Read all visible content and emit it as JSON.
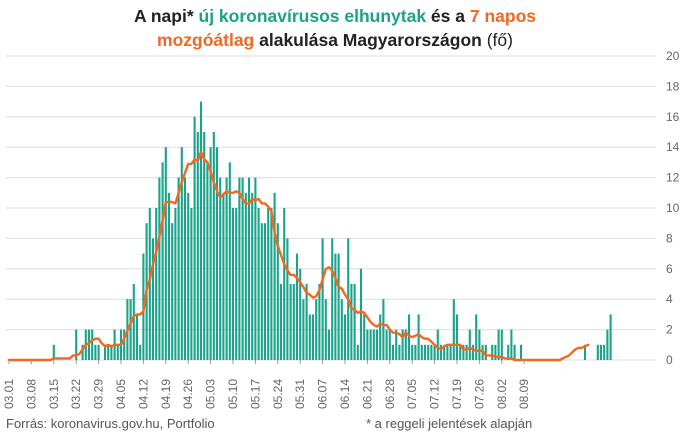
{
  "title": {
    "part1": "A napi* ",
    "part2": "új koronavírusos elhunytak",
    "part3": " és a ",
    "part4": "7 napos",
    "part5": "mozgóátlag",
    "part6": " alakulása Magyarországon",
    "part7": " (fő)"
  },
  "footer": {
    "source": "Forrás: koronavirus.gov.hu, Portfolio",
    "note": "* a reggeli jelentések alapján"
  },
  "colors": {
    "bars": "#1aa389",
    "line": "#f26722",
    "grid": "#dddddd",
    "axis_text": "#666666"
  },
  "chart_data": {
    "type": "bar",
    "ylim": [
      0,
      20
    ],
    "yticks": [
      0,
      2,
      4,
      6,
      8,
      10,
      12,
      14,
      16,
      18,
      20
    ],
    "grid": true,
    "start_date": "03.01",
    "x_tick_labels": [
      "03.01",
      "03.08",
      "03.15",
      "03.22",
      "03.29",
      "04.05",
      "04.12",
      "04.19",
      "04.26",
      "05.03",
      "05.10",
      "05.17",
      "05.24",
      "05.31",
      "06.07",
      "06.14",
      "06.21",
      "06.28",
      "07.05",
      "07.12",
      "07.19",
      "07.26",
      "08.02",
      "08.09"
    ],
    "series": [
      {
        "name": "új koronavírusos elhunytak",
        "kind": "bar",
        "values": [
          0,
          0,
          0,
          0,
          0,
          0,
          0,
          0,
          0,
          0,
          0,
          0,
          0,
          0,
          1,
          0,
          0,
          0,
          0,
          0,
          0,
          2,
          0,
          1,
          2,
          2,
          2,
          1,
          1,
          0,
          1,
          1,
          1,
          2,
          1,
          2,
          2,
          4,
          4,
          5,
          3,
          1,
          7,
          9,
          10,
          8,
          10,
          12,
          13,
          14,
          11,
          9,
          10,
          12,
          14,
          12,
          11,
          10,
          16,
          15,
          17,
          15,
          13,
          14,
          15,
          14,
          12,
          11,
          12,
          13,
          10,
          10,
          12,
          12,
          11,
          12,
          11,
          12,
          10,
          9,
          9,
          10,
          10,
          11,
          9,
          5,
          10,
          8,
          5,
          5,
          7,
          6,
          4,
          5,
          3,
          3,
          4,
          5,
          8,
          4,
          2,
          8,
          7,
          7,
          4,
          3,
          8,
          5,
          5,
          1,
          6,
          3,
          2,
          2,
          2,
          2,
          3,
          4,
          2,
          2,
          1,
          2,
          1,
          2,
          2,
          3,
          1,
          1,
          3,
          1,
          1,
          1,
          1,
          1,
          2,
          1,
          1,
          1,
          1,
          4,
          3,
          1,
          1,
          1,
          2,
          1,
          3,
          2,
          1,
          1,
          0,
          1,
          1,
          2,
          2,
          0,
          1,
          2,
          1,
          0,
          1,
          0,
          0,
          0,
          0,
          0,
          0,
          0,
          0,
          0,
          0,
          0,
          0,
          0,
          0,
          0,
          0,
          0,
          0,
          0,
          1,
          0,
          0,
          0,
          1,
          1,
          1,
          2,
          3
        ]
      },
      {
        "name": "7 napos mozgóátlag",
        "kind": "line",
        "values": [
          0,
          0,
          0,
          0,
          0,
          0,
          0,
          0,
          0,
          0,
          0,
          0,
          0,
          0,
          0.1,
          0.1,
          0.1,
          0.1,
          0.1,
          0.1,
          0.3,
          0.3,
          0.4,
          0.7,
          1.0,
          1.1,
          1.3,
          1.4,
          1.4,
          1.1,
          0.9,
          1.0,
          0.9,
          1.0,
          1.0,
          1.0,
          1.4,
          1.9,
          2.4,
          2.9,
          3.0,
          3.0,
          3.2,
          4.6,
          5.3,
          6.3,
          7.1,
          8.1,
          9.2,
          10.4,
          10.4,
          10.4,
          10.3,
          11.0,
          11.7,
          12.3,
          12.9,
          12.9,
          13.2,
          13.1,
          13.7,
          13.2,
          13.0,
          12.4,
          11.7,
          11.1,
          10.7,
          10.9,
          11.1,
          11.0,
          11.0,
          11.1,
          11.0,
          10.6,
          10.3,
          10.3,
          10.6,
          10.5,
          10.6,
          10.3,
          10.3,
          10.1,
          9.8,
          8.4,
          7.5,
          6.9,
          6.3,
          5.9,
          5.6,
          5.6,
          5.4,
          5.1,
          4.8,
          4.4,
          4.3,
          4.1,
          4.2,
          4.6,
          5.3,
          6.0,
          6.1,
          5.9,
          5.4,
          4.8,
          4.7,
          4.3,
          4.0,
          3.4,
          3.3,
          3.1,
          3.2,
          3.1,
          2.8,
          2.5,
          2.3,
          2.2,
          2.4,
          2.3,
          2.3,
          2.0,
          1.8,
          1.8,
          1.7,
          1.5,
          1.8,
          1.6,
          1.5,
          1.6,
          1.7,
          1.5,
          1.4,
          1.4,
          1.2,
          1.0,
          0.8,
          0.7,
          0.9,
          1.0,
          1.0,
          1.0,
          1.0,
          1.0,
          0.7,
          0.7,
          0.8,
          0.7,
          0.6,
          0.6,
          0.6,
          0.3,
          0.3,
          0.3,
          0.2,
          0.2,
          0.2,
          0.1,
          0.1,
          0.1,
          0,
          0,
          0,
          0,
          0,
          0,
          0,
          0,
          0,
          0,
          0,
          0,
          0,
          0,
          0,
          0.1,
          0.2,
          0.3,
          0.5,
          0.7,
          0.8,
          0.8,
          0.9,
          1.0
        ]
      }
    ]
  }
}
